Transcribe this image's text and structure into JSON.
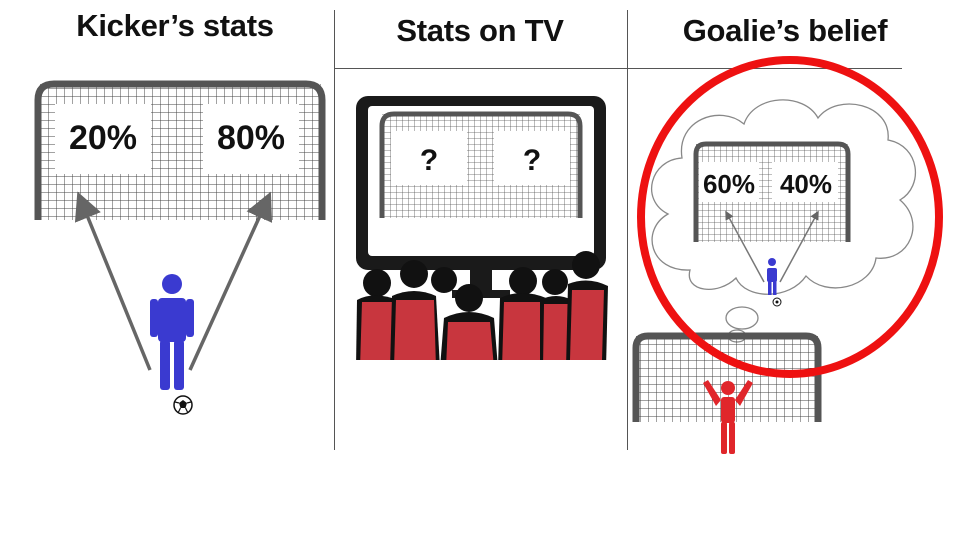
{
  "panels": [
    {
      "title": "Kicker’s stats",
      "left_value": "20%",
      "right_value": "80%"
    },
    {
      "title": "Stats on TV",
      "left_value": "?",
      "right_value": "?"
    },
    {
      "title": "Goalie’s belief",
      "left_value": "60%",
      "right_value": "40%"
    }
  ],
  "colors": {
    "kicker": "#3a3ad0",
    "audience_shirt": "#c8363e",
    "goalie": "#e0262b",
    "highlight_circle": "#ee1111",
    "goal_frame": "#555555"
  },
  "icons": [
    "soccer-ball-icon",
    "kicker-person-icon",
    "goalie-person-icon",
    "tv-screen-icon",
    "thought-cloud-icon"
  ]
}
